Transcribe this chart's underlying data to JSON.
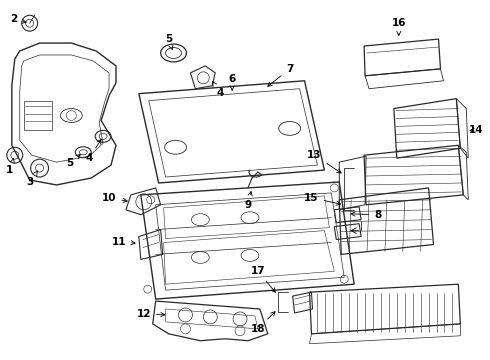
{
  "bg_color": "#ffffff",
  "line_color": "#2a2a2a",
  "figsize": [
    4.9,
    3.6
  ],
  "dpi": 100,
  "fs": 7.5
}
